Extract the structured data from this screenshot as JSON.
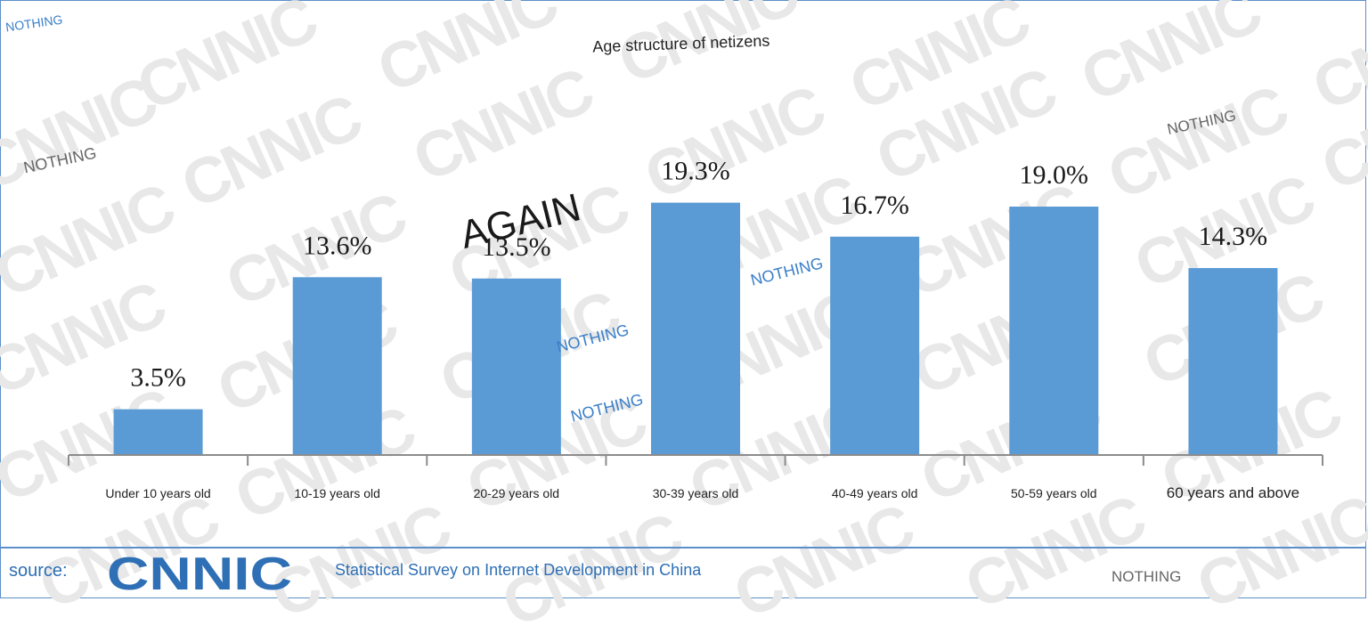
{
  "chart_data": {
    "type": "bar",
    "title": "Age structure of netizens",
    "categories": [
      "Under 10 years old",
      "10-19 years old",
      "20-29 years old",
      "30-39 years old",
      "40-49 years old",
      "50-59 years old",
      "60 years and above"
    ],
    "values": [
      3.5,
      13.6,
      13.5,
      19.3,
      16.7,
      19.0,
      14.3
    ],
    "data_labels": [
      "3.5%",
      "13.6%",
      "13.5%",
      "19.3%",
      "16.7%",
      "19.0%",
      "14.3%"
    ],
    "ylim": [
      0,
      20.5
    ],
    "grid": false,
    "legend": "none",
    "bar_color": "#5b9bd5"
  },
  "footer": {
    "source_label": "source:",
    "logo_text": "CNNIC",
    "survey_text": "Statistical Survey on Internet Development in China"
  },
  "watermark": {
    "text": "CNNIC"
  },
  "overlays": [
    "NOTHING",
    "NOTHING",
    "NOTHING",
    "NOTHING",
    "NOTHING",
    "NOTHING",
    "NOTHING",
    "AGAIN"
  ]
}
